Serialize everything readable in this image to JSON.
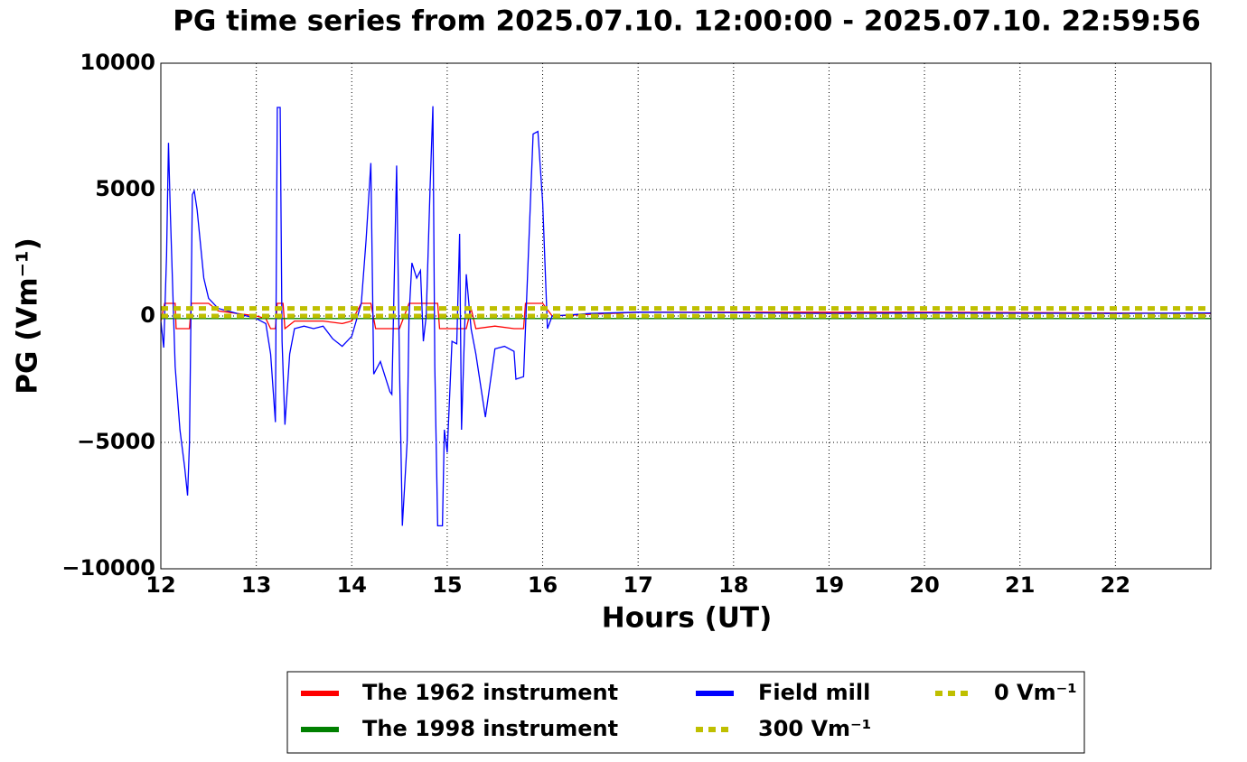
{
  "chart_data": {
    "type": "line",
    "title": "PG time series from 2025.07.10. 12:00:00 - 2025.07.10. 22:59:56",
    "x_label": "Hours (UT)",
    "y_label": "PG (Vm⁻¹)",
    "xlim": [
      12,
      23
    ],
    "xticks": [
      12,
      13,
      14,
      15,
      16,
      17,
      18,
      19,
      20,
      21,
      22
    ],
    "ylim": [
      -10000,
      10000
    ],
    "yticks": [
      {
        "value": -10000,
        "label": "−10000"
      },
      {
        "value": -5000,
        "label": "−5000"
      },
      0,
      5000,
      10000
    ],
    "grid": true,
    "legend": "lower center",
    "series": [
      {
        "name": "The 1962 instrument",
        "color": "#ff0000",
        "linestyle": "solid",
        "x": [
          12.0,
          12.04,
          12.15,
          12.16,
          12.3,
          12.32,
          12.5,
          12.6,
          13.0,
          13.1,
          13.15,
          13.2,
          13.22,
          13.28,
          13.3,
          13.4,
          13.7,
          13.9,
          14.0,
          14.1,
          14.2,
          14.25,
          14.5,
          14.6,
          14.9,
          14.92,
          15.2,
          15.25,
          15.3,
          15.5,
          15.7,
          15.8,
          15.82,
          16.0,
          16.1,
          17.0,
          20.0,
          23.0
        ],
        "values": [
          -200,
          500,
          500,
          -500,
          -500,
          500,
          500,
          200,
          0,
          -100,
          -500,
          -500,
          500,
          500,
          -500,
          -200,
          -200,
          -300,
          -200,
          500,
          500,
          -500,
          -500,
          500,
          500,
          -500,
          -500,
          300,
          -500,
          -400,
          -500,
          -500,
          500,
          500,
          0,
          150,
          150,
          100
        ]
      },
      {
        "name": "The 1998 instrument",
        "color": "#008000",
        "linestyle": "solid",
        "x": [
          12,
          23
        ],
        "values": [
          -100,
          -100
        ]
      },
      {
        "name": "Field mill",
        "color": "#0000ff",
        "linestyle": "solid",
        "x": [
          12.0,
          12.03,
          12.06,
          12.08,
          12.1,
          12.15,
          12.2,
          12.25,
          12.28,
          12.3,
          12.33,
          12.35,
          12.38,
          12.45,
          12.5,
          12.6,
          12.8,
          13.0,
          13.1,
          13.15,
          13.2,
          13.22,
          13.25,
          13.27,
          13.3,
          13.35,
          13.4,
          13.5,
          13.6,
          13.7,
          13.8,
          13.9,
          14.0,
          14.1,
          14.15,
          14.2,
          14.23,
          14.3,
          14.4,
          14.42,
          14.47,
          14.5,
          14.53,
          14.58,
          14.6,
          14.63,
          14.68,
          14.72,
          14.75,
          14.78,
          14.82,
          14.85,
          14.87,
          14.9,
          14.95,
          14.97,
          15.0,
          15.05,
          15.1,
          15.13,
          15.15,
          15.2,
          15.25,
          15.3,
          15.4,
          15.5,
          15.6,
          15.7,
          15.72,
          15.8,
          15.9,
          15.95,
          16.0,
          16.05,
          16.1,
          16.5,
          17.0,
          18.0,
          19.0,
          20.0,
          21.0,
          22.0,
          23.0
        ],
        "values": [
          -200,
          -1250,
          2400,
          6850,
          4000,
          -2000,
          -4500,
          -6000,
          -7100,
          -5000,
          4800,
          4950,
          4200,
          1500,
          700,
          300,
          100,
          -100,
          -300,
          -1500,
          -4200,
          8250,
          8250,
          -1000,
          -4300,
          -1500,
          -500,
          -400,
          -500,
          -400,
          -900,
          -1200,
          -800,
          500,
          3000,
          6050,
          -2300,
          -1800,
          -3000,
          -3100,
          5950,
          -2000,
          -8300,
          -5000,
          0,
          2100,
          1500,
          1800,
          -1000,
          0,
          5000,
          8300,
          -2000,
          -8300,
          -8300,
          -4500,
          -5400,
          -1000,
          -1100,
          3250,
          -4500,
          1650,
          -500,
          -1500,
          -4000,
          -1300,
          -1200,
          -1400,
          -2500,
          -2400,
          7200,
          7300,
          4500,
          -500,
          0,
          100,
          150,
          130,
          100,
          120,
          110,
          100,
          120
        ]
      },
      {
        "name": "300 Vm⁻¹",
        "color": "#bfbf00",
        "linestyle": "dashed",
        "x": [
          12,
          23
        ],
        "values": [
          300,
          300
        ]
      },
      {
        "name": "0 Vm⁻¹",
        "color": "#bfbf00",
        "linestyle": "dashed",
        "x": [
          12,
          23
        ],
        "values": [
          0,
          0
        ]
      }
    ]
  }
}
